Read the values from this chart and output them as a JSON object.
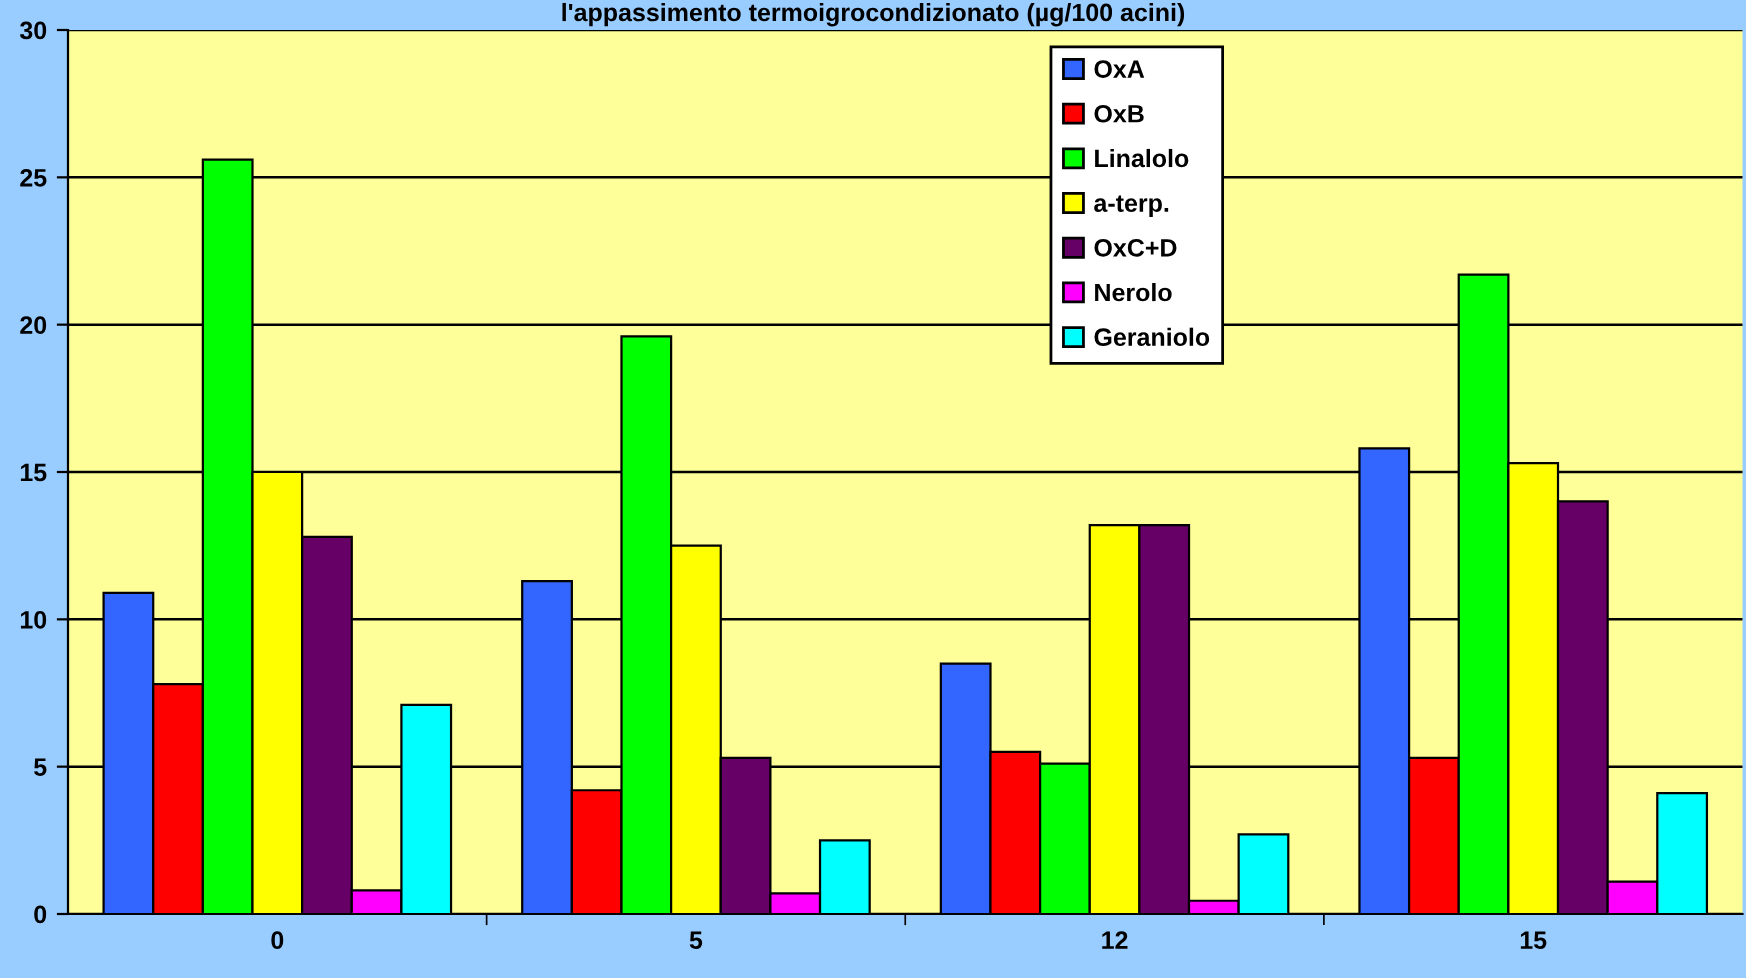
{
  "chart_data": {
    "type": "bar",
    "title": "l'appassimento termoigrocondizionato (µg/100 acini)",
    "categories": [
      "0",
      "5",
      "12",
      "15"
    ],
    "series": [
      {
        "name": "OxA",
        "color": "#3366ff",
        "values": [
          10.9,
          11.3,
          8.5,
          15.8
        ]
      },
      {
        "name": "OxB",
        "color": "#ff0000",
        "values": [
          7.8,
          4.2,
          5.5,
          5.3
        ]
      },
      {
        "name": "Linalolo",
        "color": "#00ff00",
        "values": [
          25.6,
          19.6,
          5.1,
          21.7
        ]
      },
      {
        "name": "a-terp.",
        "color": "#ffff00",
        "values": [
          15.0,
          12.5,
          13.2,
          15.3
        ]
      },
      {
        "name": "OxC+D",
        "color": "#660066",
        "values": [
          12.8,
          5.3,
          13.2,
          14.0
        ]
      },
      {
        "name": "Nerolo",
        "color": "#ff00ff",
        "values": [
          0.8,
          0.7,
          0.45,
          1.1
        ]
      },
      {
        "name": "Geraniolo",
        "color": "#00ffff",
        "values": [
          7.1,
          2.5,
          2.7,
          4.1
        ]
      }
    ],
    "ylim": [
      0,
      30
    ],
    "yticks": [
      0,
      5,
      10,
      15,
      20,
      25,
      30
    ],
    "grid": "y",
    "legend": "top right"
  }
}
